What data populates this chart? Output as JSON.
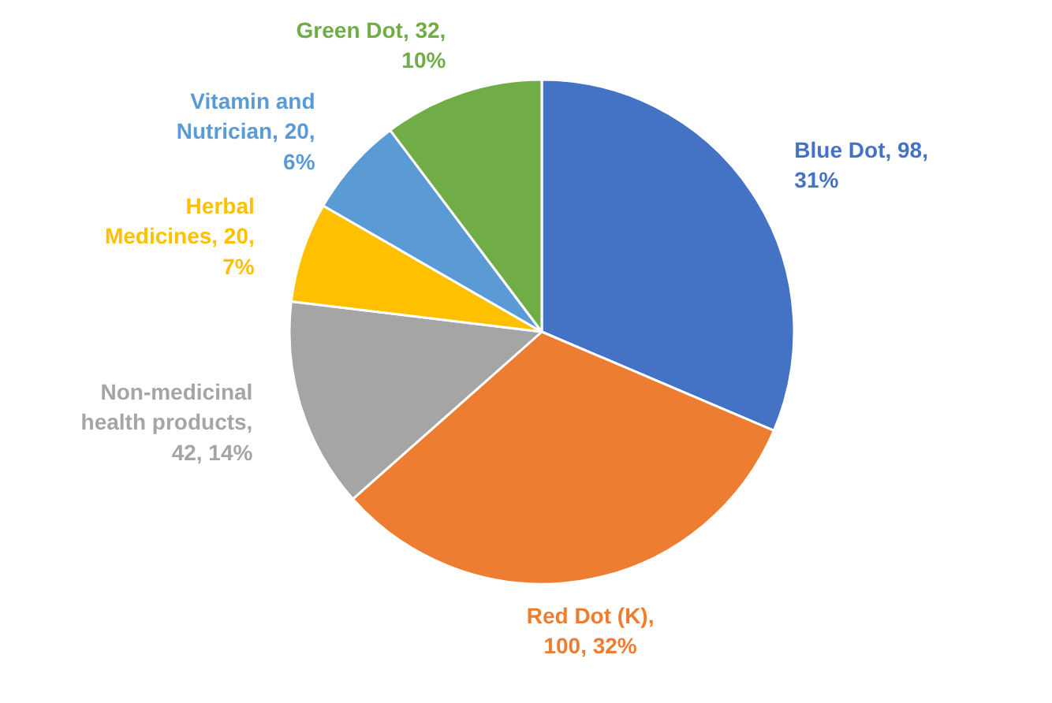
{
  "chart_data": {
    "type": "pie",
    "categories": [
      "Blue Dot, 98, 31%",
      "Red Dot (K), 100, 32%",
      "Non-medicinal health products, 42, 14%",
      "Herbal Medicines, 20, 7%",
      "Vitamin and Nutrician, 20, 6%",
      "Green Dot, 32, 10%"
    ],
    "values": [
      98,
      100,
      42,
      20,
      20,
      32
    ],
    "colors": [
      "#4472c4",
      "#ed7d31",
      "#a5a5a5",
      "#ffc000",
      "#5b9bd5",
      "#70ad47"
    ]
  }
}
